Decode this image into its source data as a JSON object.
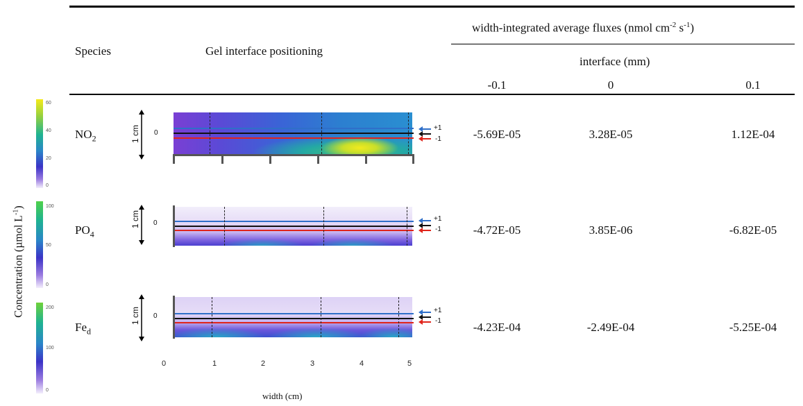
{
  "header": {
    "species": "Species",
    "gel_positioning": "Gel interface positioning",
    "flux_title_text": "width-integrated average fluxes (nmol cm",
    "flux_title_exp1": "-2",
    "flux_title_mid": " s",
    "flux_title_exp2": "-1",
    "flux_title_end": ")",
    "interface_label": "interface (mm)",
    "col_neg": "-0.1",
    "col_zero": "0",
    "col_pos": "0.1"
  },
  "colorbar": {
    "axis_label": "Concentration (µmol L",
    "axis_label_exp": "-1",
    "axis_label_end": ")",
    "bars": [
      {
        "ticks": [
          "60",
          "40",
          "20",
          "0"
        ],
        "tick_values": [
          60,
          40,
          20,
          0
        ],
        "max": 65
      },
      {
        "ticks": [
          "100",
          "50",
          "0"
        ],
        "tick_values": [
          100,
          50,
          0
        ],
        "max": 110
      },
      {
        "ticks": [
          "200",
          "100",
          "0"
        ],
        "tick_values": [
          200,
          100,
          0
        ],
        "max": 215
      }
    ]
  },
  "rows": [
    {
      "species_base": "NO",
      "species_sub": "2",
      "scale_label": "1 cm",
      "zero_label": "0",
      "plus_label": "+1",
      "minus_label": "-1",
      "flux": [
        "-5.69E-05",
        "3.28E-05",
        "1.12E-04"
      ]
    },
    {
      "species_base": "PO",
      "species_sub": "4",
      "scale_label": "1 cm",
      "zero_label": "0",
      "plus_label": "+1",
      "minus_label": "-1",
      "flux": [
        "-4.72E-05",
        "3.85E-06",
        "-6.82E-05"
      ]
    },
    {
      "species_base": "Fe",
      "species_sub": "d",
      "scale_label": "1 cm",
      "zero_label": "0",
      "plus_label": "+1",
      "minus_label": "-1",
      "flux": [
        "-4.23E-04",
        "-2.49E-04",
        "-5.25E-04"
      ]
    }
  ],
  "width_axis": {
    "ticks": [
      "0",
      "1",
      "2",
      "3",
      "4",
      "5"
    ],
    "label": "width (cm)"
  },
  "colors": {
    "blue_line": "#2f6fc9",
    "black_line": "#111111",
    "red_line": "#e0241b"
  }
}
